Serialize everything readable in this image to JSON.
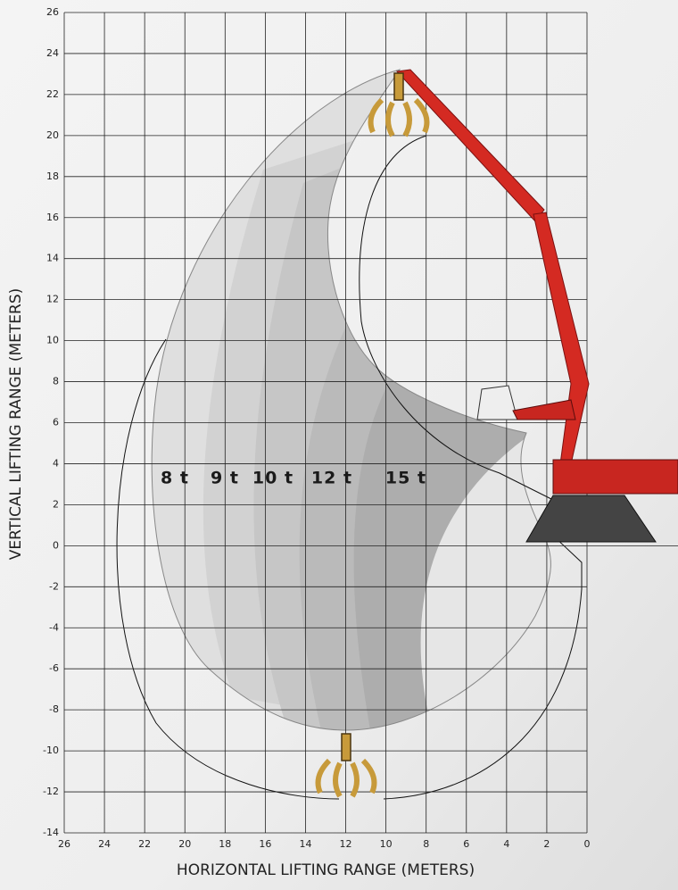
{
  "chart_data": {
    "type": "area",
    "x_label": "HORIZONTAL LIFTING RANGE (METERS)",
    "y_label": "VERTICAL LIFTING RANGE (METERS)",
    "xlim": [
      26,
      0
    ],
    "xticks": [
      26,
      24,
      22,
      20,
      18,
      16,
      14,
      12,
      10,
      8,
      6,
      4,
      2,
      0
    ],
    "ylim": [
      -14,
      26
    ],
    "yticks": [
      -14,
      -12,
      -10,
      -8,
      -6,
      -4,
      -2,
      0,
      2,
      4,
      6,
      8,
      10,
      12,
      14,
      16,
      18,
      20,
      22,
      24,
      26
    ],
    "grid": true,
    "annotations": [
      "8 t",
      "9 t",
      "10 t",
      "12 t",
      "15 t"
    ]
  }
}
